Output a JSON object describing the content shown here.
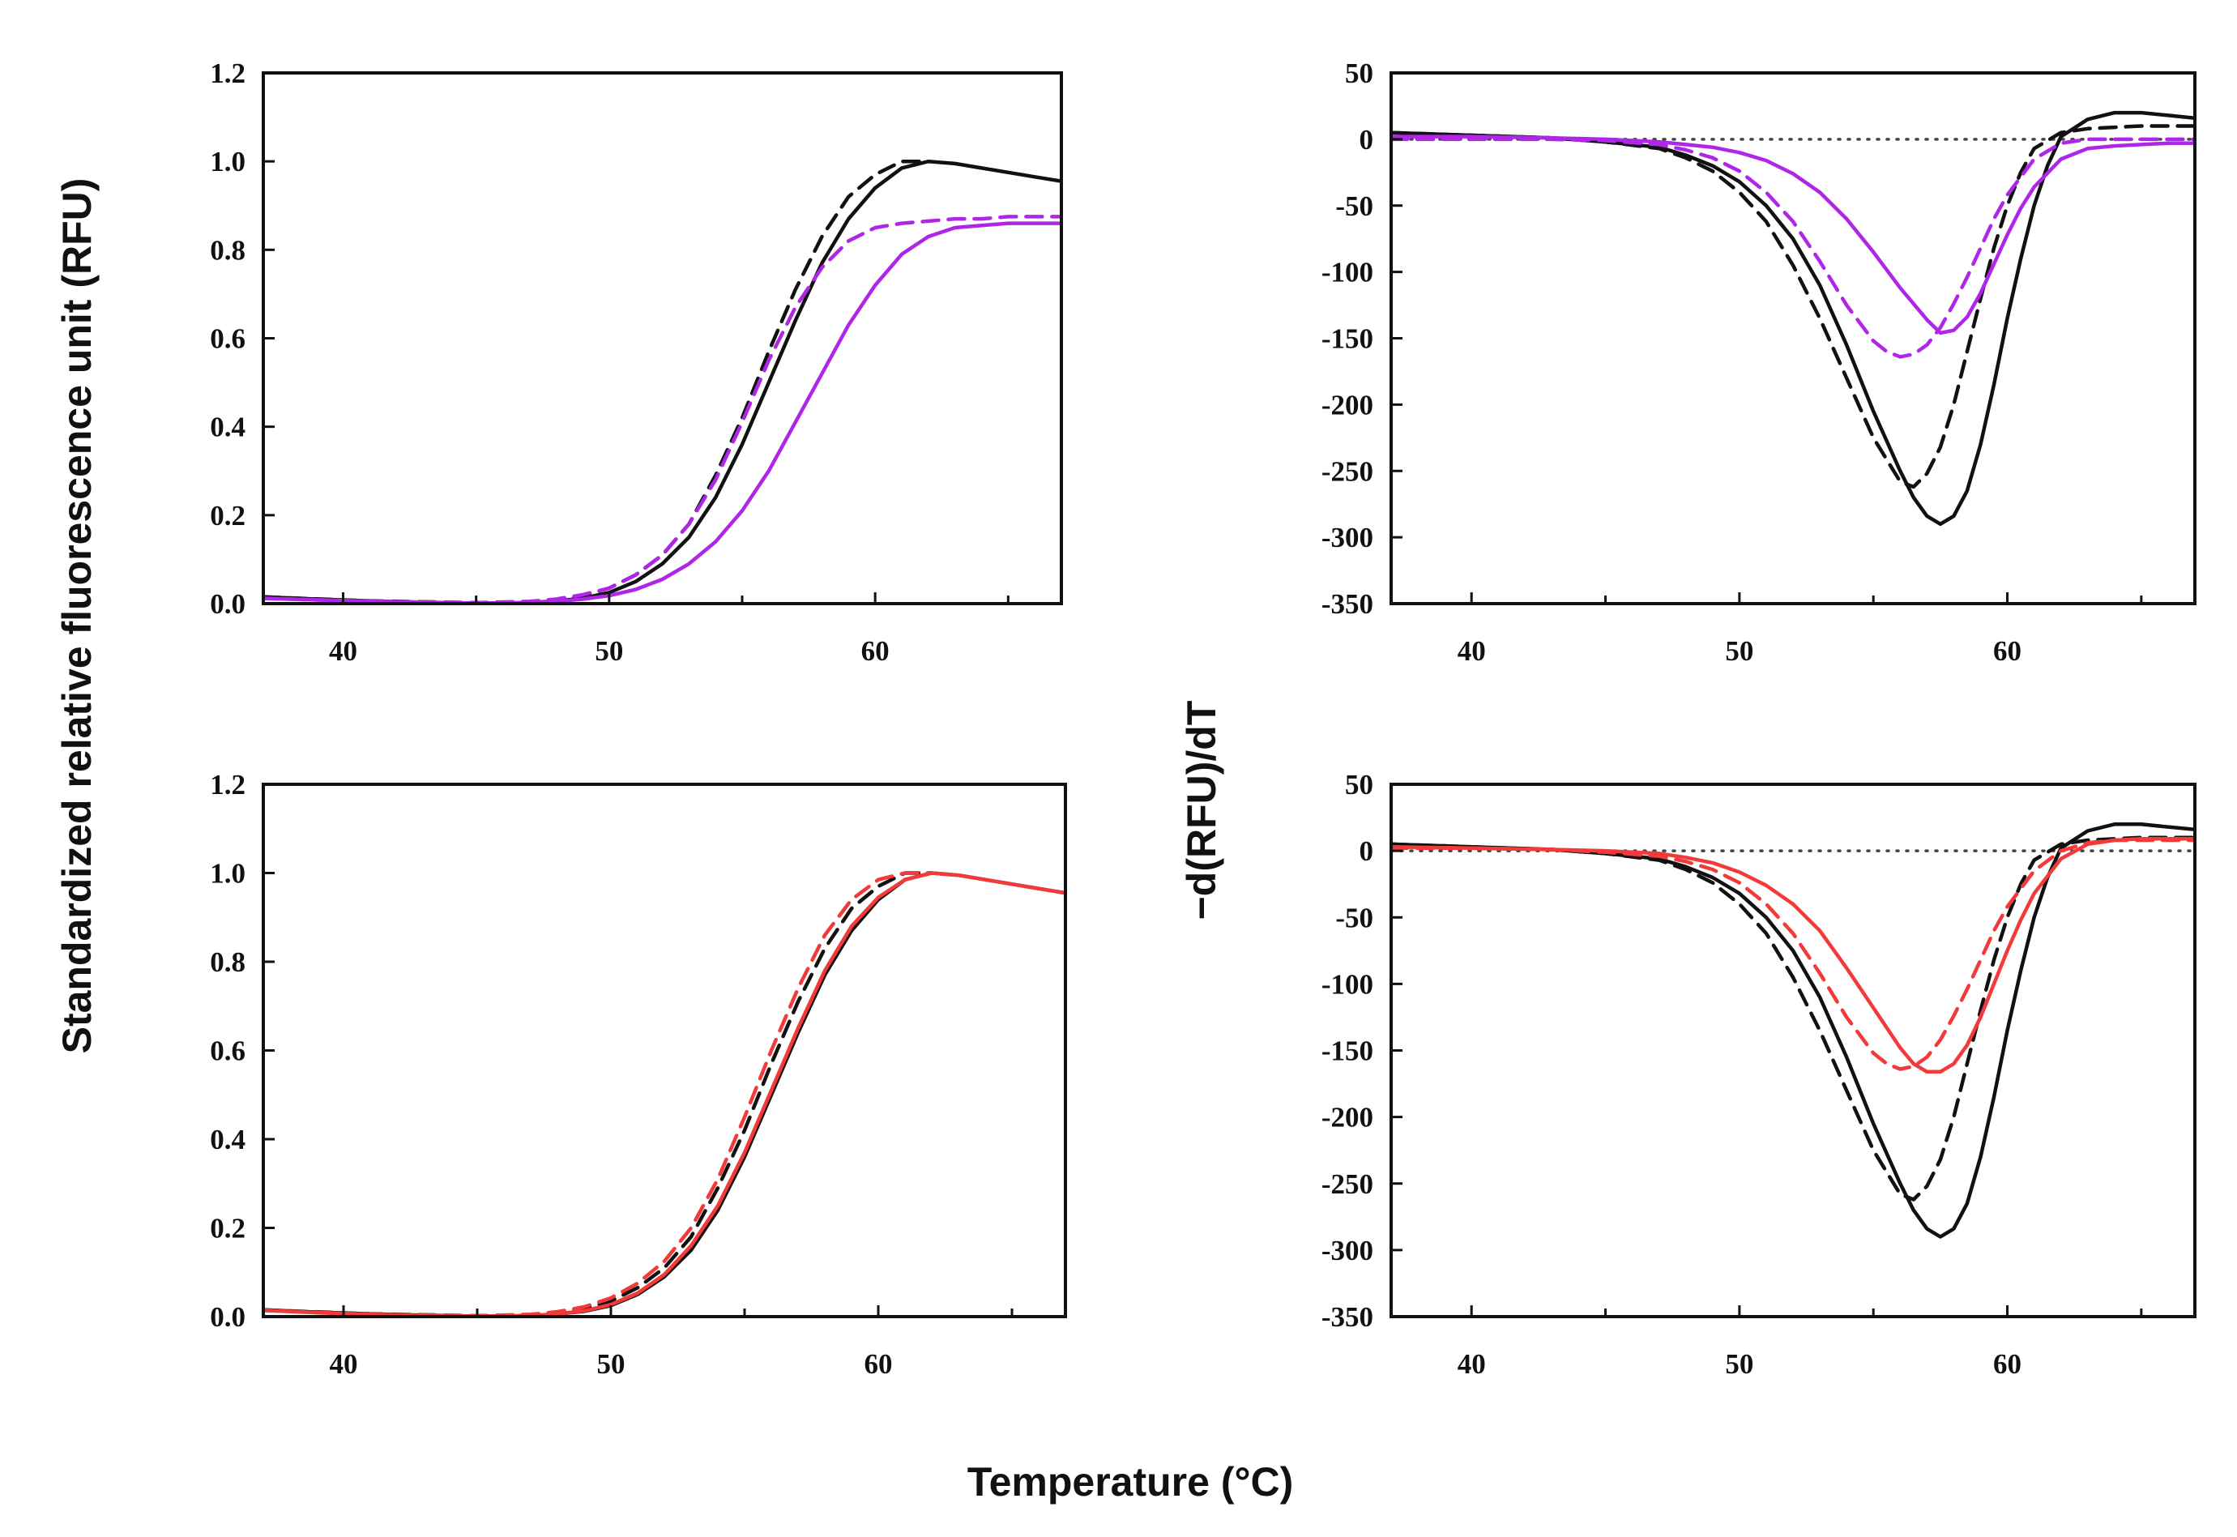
{
  "figure": {
    "y_label_left": "Standardized relative fluorescence unit (RFU)",
    "y_label_right": "−d(RFU)/dT",
    "x_label": "Temperature (°C)"
  },
  "colors": {
    "black": "#111111",
    "purple": "#b026e8",
    "red": "#f23a3a",
    "baseline": "#444444"
  },
  "chart_data": [
    {
      "id": "top_left",
      "type": "line",
      "xlim": [
        37,
        67
      ],
      "ylim": [
        0.0,
        1.2
      ],
      "xticks": [
        40,
        50,
        60
      ],
      "yticks": [
        0.0,
        0.2,
        0.4,
        0.6,
        0.8,
        1.0,
        1.2
      ],
      "ytick_labels": [
        "0.0",
        "0.2",
        "0.4",
        "0.6",
        "0.8",
        "1.0",
        "1.2"
      ],
      "xlabel": "Temperature (°C)",
      "ylabel": "Standardized relative fluorescence unit (RFU)",
      "series": [
        {
          "name": "black-solid",
          "color": "black",
          "dash": false,
          "x": [
            37,
            39,
            41,
            43,
            45,
            47,
            48,
            49,
            50,
            51,
            52,
            53,
            54,
            55,
            56,
            57,
            58,
            59,
            60,
            61,
            62,
            63,
            64,
            65,
            66,
            67
          ],
          "y": [
            0.015,
            0.01,
            0.006,
            0.003,
            0.001,
            0.002,
            0.006,
            0.012,
            0.025,
            0.05,
            0.09,
            0.15,
            0.24,
            0.36,
            0.5,
            0.64,
            0.77,
            0.87,
            0.94,
            0.985,
            1.0,
            0.995,
            0.985,
            0.975,
            0.965,
            0.955
          ]
        },
        {
          "name": "black-dashed",
          "color": "black",
          "dash": true,
          "x": [
            37,
            41,
            45,
            47,
            48,
            49,
            50,
            51,
            52,
            53,
            54,
            55,
            56,
            57,
            58,
            59,
            60,
            61,
            62
          ],
          "y": [
            0.015,
            0.006,
            0.002,
            0.004,
            0.009,
            0.018,
            0.035,
            0.065,
            0.11,
            0.18,
            0.29,
            0.42,
            0.57,
            0.71,
            0.83,
            0.92,
            0.97,
            1.0,
            1.0
          ]
        },
        {
          "name": "purple-solid",
          "color": "purple",
          "dash": false,
          "x": [
            37,
            41,
            45,
            47,
            48,
            49,
            50,
            51,
            52,
            53,
            54,
            55,
            56,
            57,
            58,
            59,
            60,
            61,
            62,
            63,
            64,
            65,
            66,
            67
          ],
          "y": [
            0.012,
            0.005,
            0.001,
            0.002,
            0.005,
            0.01,
            0.018,
            0.032,
            0.055,
            0.09,
            0.14,
            0.21,
            0.3,
            0.41,
            0.52,
            0.63,
            0.72,
            0.79,
            0.83,
            0.85,
            0.855,
            0.86,
            0.86,
            0.86
          ]
        },
        {
          "name": "purple-dashed",
          "color": "purple",
          "dash": true,
          "x": [
            37,
            41,
            45,
            47,
            48,
            49,
            50,
            51,
            52,
            53,
            54,
            55,
            56,
            57,
            58,
            59,
            60,
            61,
            62,
            63,
            64,
            65,
            66,
            67
          ],
          "y": [
            0.012,
            0.005,
            0.002,
            0.005,
            0.01,
            0.02,
            0.035,
            0.065,
            0.11,
            0.18,
            0.28,
            0.41,
            0.55,
            0.67,
            0.76,
            0.82,
            0.85,
            0.86,
            0.865,
            0.87,
            0.87,
            0.875,
            0.875,
            0.875
          ]
        }
      ]
    },
    {
      "id": "top_right",
      "type": "line",
      "xlim": [
        37,
        67
      ],
      "ylim": [
        -350,
        50
      ],
      "xticks": [
        40,
        50,
        60
      ],
      "yticks": [
        -350,
        -300,
        -250,
        -200,
        -150,
        -100,
        -50,
        0,
        50
      ],
      "ytick_labels": [
        "-350",
        "-300",
        "-250",
        "-200",
        "-150",
        "-100",
        "-50",
        "0",
        "50"
      ],
      "baseline": 0,
      "xlabel": "Temperature (°C)",
      "ylabel": "−d(RFU)/dT",
      "series": [
        {
          "name": "black-solid",
          "color": "black",
          "dash": false,
          "x": [
            37,
            40,
            43,
            45,
            47,
            48,
            49,
            50,
            51,
            52,
            53,
            54,
            55,
            56,
            56.5,
            57,
            57.5,
            58,
            58.5,
            59,
            59.5,
            60,
            60.5,
            61,
            61.5,
            62,
            63,
            64,
            65,
            66,
            67
          ],
          "y": [
            5,
            3,
            1,
            -2,
            -6,
            -12,
            -20,
            -32,
            -50,
            -75,
            -110,
            -155,
            -205,
            -250,
            -270,
            -284,
            -290,
            -284,
            -265,
            -230,
            -185,
            -135,
            -90,
            -50,
            -20,
            2,
            15,
            20,
            20,
            18,
            16
          ]
        },
        {
          "name": "black-dashed",
          "color": "black",
          "dash": true,
          "x": [
            37,
            40,
            43,
            45,
            47,
            48,
            49,
            50,
            51,
            52,
            53,
            54,
            55,
            56,
            56.5,
            57,
            57.5,
            58,
            58.5,
            59,
            59.5,
            60,
            60.5,
            61,
            62,
            63,
            64,
            65,
            66,
            67
          ],
          "y": [
            5,
            3,
            1,
            -2,
            -7,
            -14,
            -24,
            -40,
            -62,
            -95,
            -135,
            -180,
            -225,
            -258,
            -262,
            -252,
            -232,
            -200,
            -160,
            -120,
            -82,
            -50,
            -25,
            -7,
            5,
            8,
            9,
            10,
            10,
            10
          ]
        },
        {
          "name": "purple-solid",
          "color": "purple",
          "dash": false,
          "x": [
            37,
            40,
            43,
            45,
            47,
            48,
            49,
            50,
            51,
            52,
            53,
            54,
            55,
            56,
            57,
            57.5,
            58,
            58.5,
            59,
            59.5,
            60,
            60.5,
            61,
            62,
            63,
            64,
            65,
            66,
            67
          ],
          "y": [
            2,
            2,
            1,
            0,
            -2,
            -4,
            -6,
            -10,
            -16,
            -26,
            -40,
            -60,
            -85,
            -112,
            -136,
            -146,
            -144,
            -134,
            -116,
            -94,
            -72,
            -52,
            -36,
            -15,
            -7,
            -5,
            -4,
            -3,
            -3
          ]
        },
        {
          "name": "purple-dashed",
          "color": "purple",
          "dash": true,
          "x": [
            37,
            40,
            43,
            45,
            47,
            48,
            49,
            50,
            51,
            52,
            53,
            54,
            55,
            55.5,
            56,
            56.5,
            57,
            57.5,
            58,
            58.5,
            59,
            59.5,
            60,
            61,
            62,
            63,
            64,
            65,
            66,
            67
          ],
          "y": [
            0,
            0,
            0,
            -1,
            -4,
            -8,
            -14,
            -24,
            -40,
            -62,
            -92,
            -125,
            -152,
            -160,
            -164,
            -162,
            -155,
            -142,
            -124,
            -104,
            -82,
            -60,
            -42,
            -15,
            -3,
            0,
            0,
            0,
            0,
            0
          ]
        }
      ]
    },
    {
      "id": "bottom_left",
      "type": "line",
      "xlim": [
        37,
        67
      ],
      "ylim": [
        0.0,
        1.2
      ],
      "xticks": [
        40,
        50,
        60
      ],
      "yticks": [
        0.0,
        0.2,
        0.4,
        0.6,
        0.8,
        1.0,
        1.2
      ],
      "ytick_labels": [
        "0.0",
        "0.2",
        "0.4",
        "0.6",
        "0.8",
        "1.0",
        "1.2"
      ],
      "xlabel": "Temperature (°C)",
      "ylabel": "Standardized relative fluorescence unit (RFU)",
      "series": [
        {
          "name": "black-solid",
          "color": "black",
          "dash": false,
          "x": [
            37,
            39,
            41,
            43,
            45,
            47,
            48,
            49,
            50,
            51,
            52,
            53,
            54,
            55,
            56,
            57,
            58,
            59,
            60,
            61,
            62,
            63,
            64,
            65,
            66,
            67
          ],
          "y": [
            0.015,
            0.01,
            0.006,
            0.003,
            0.001,
            0.002,
            0.006,
            0.012,
            0.025,
            0.05,
            0.09,
            0.15,
            0.24,
            0.36,
            0.5,
            0.64,
            0.77,
            0.87,
            0.94,
            0.985,
            1.0,
            0.995,
            0.985,
            0.975,
            0.965,
            0.955
          ]
        },
        {
          "name": "black-dashed",
          "color": "black",
          "dash": true,
          "x": [
            37,
            41,
            45,
            47,
            48,
            49,
            50,
            51,
            52,
            53,
            54,
            55,
            56,
            57,
            58,
            59,
            60,
            61,
            62
          ],
          "y": [
            0.015,
            0.006,
            0.002,
            0.004,
            0.009,
            0.018,
            0.035,
            0.065,
            0.11,
            0.18,
            0.29,
            0.42,
            0.57,
            0.71,
            0.83,
            0.92,
            0.97,
            1.0,
            1.0
          ]
        },
        {
          "name": "red-solid",
          "color": "red",
          "dash": false,
          "x": [
            37,
            39,
            41,
            43,
            45,
            47,
            48,
            49,
            50,
            51,
            52,
            53,
            54,
            55,
            56,
            57,
            58,
            59,
            60,
            61,
            62,
            63,
            64,
            65,
            66,
            67
          ],
          "y": [
            0.014,
            0.009,
            0.005,
            0.002,
            0.001,
            0.002,
            0.006,
            0.013,
            0.027,
            0.053,
            0.095,
            0.16,
            0.25,
            0.37,
            0.51,
            0.65,
            0.78,
            0.88,
            0.945,
            0.985,
            1.0,
            0.995,
            0.985,
            0.975,
            0.965,
            0.955
          ]
        },
        {
          "name": "red-dashed",
          "color": "red",
          "dash": true,
          "x": [
            37,
            41,
            45,
            47,
            48,
            49,
            50,
            51,
            52,
            53,
            54,
            55,
            56,
            57,
            58,
            59,
            60,
            61,
            62
          ],
          "y": [
            0.014,
            0.005,
            0.002,
            0.005,
            0.011,
            0.022,
            0.042,
            0.075,
            0.125,
            0.2,
            0.31,
            0.45,
            0.6,
            0.74,
            0.86,
            0.94,
            0.985,
            1.0,
            1.0
          ]
        }
      ]
    },
    {
      "id": "bottom_right",
      "type": "line",
      "xlim": [
        37,
        67
      ],
      "ylim": [
        -350,
        50
      ],
      "xticks": [
        40,
        50,
        60
      ],
      "yticks": [
        -350,
        -300,
        -250,
        -200,
        -150,
        -100,
        -50,
        0,
        50
      ],
      "ytick_labels": [
        "-350",
        "-300",
        "-250",
        "-200",
        "-150",
        "-100",
        "-50",
        "0",
        "50"
      ],
      "baseline": 0,
      "xlabel": "Temperature (°C)",
      "ylabel": "−d(RFU)/dT",
      "series": [
        {
          "name": "black-solid",
          "color": "black",
          "dash": false,
          "x": [
            37,
            40,
            43,
            45,
            47,
            48,
            49,
            50,
            51,
            52,
            53,
            54,
            55,
            56,
            56.5,
            57,
            57.5,
            58,
            58.5,
            59,
            59.5,
            60,
            60.5,
            61,
            61.5,
            62,
            63,
            64,
            65,
            66,
            67
          ],
          "y": [
            5,
            3,
            1,
            -2,
            -6,
            -12,
            -20,
            -32,
            -50,
            -75,
            -110,
            -155,
            -205,
            -250,
            -270,
            -284,
            -290,
            -284,
            -265,
            -230,
            -185,
            -135,
            -90,
            -50,
            -20,
            2,
            15,
            20,
            20,
            18,
            16
          ]
        },
        {
          "name": "black-dashed",
          "color": "black",
          "dash": true,
          "x": [
            37,
            40,
            43,
            45,
            47,
            48,
            49,
            50,
            51,
            52,
            53,
            54,
            55,
            56,
            56.5,
            57,
            57.5,
            58,
            58.5,
            59,
            59.5,
            60,
            60.5,
            61,
            62,
            63,
            64,
            65,
            66,
            67
          ],
          "y": [
            5,
            3,
            1,
            -2,
            -7,
            -14,
            -24,
            -40,
            -62,
            -95,
            -135,
            -180,
            -225,
            -258,
            -262,
            -252,
            -232,
            -200,
            -160,
            -120,
            -82,
            -50,
            -25,
            -7,
            5,
            8,
            9,
            10,
            10,
            10
          ]
        },
        {
          "name": "red-solid",
          "color": "red",
          "dash": false,
          "x": [
            37,
            40,
            43,
            45,
            47,
            48,
            49,
            50,
            51,
            52,
            53,
            54,
            55,
            56,
            56.5,
            57,
            57.5,
            58,
            58.5,
            59,
            59.5,
            60,
            60.5,
            61,
            62,
            63,
            64,
            65,
            66,
            67
          ],
          "y": [
            3,
            2,
            1,
            0,
            -2,
            -5,
            -9,
            -16,
            -26,
            -40,
            -60,
            -88,
            -118,
            -148,
            -160,
            -166,
            -166,
            -160,
            -146,
            -125,
            -100,
            -75,
            -52,
            -32,
            -6,
            5,
            8,
            9,
            9,
            9
          ]
        },
        {
          "name": "red-dashed",
          "color": "red",
          "dash": true,
          "x": [
            37,
            40,
            43,
            45,
            47,
            48,
            49,
            50,
            51,
            52,
            53,
            54,
            55,
            55.5,
            56,
            56.5,
            57,
            57.5,
            58,
            58.5,
            59,
            59.5,
            60,
            61,
            62,
            63,
            64,
            65,
            66,
            67
          ],
          "y": [
            2,
            2,
            1,
            -1,
            -4,
            -8,
            -14,
            -24,
            -40,
            -62,
            -92,
            -125,
            -152,
            -160,
            -164,
            -162,
            -155,
            -142,
            -124,
            -104,
            -82,
            -60,
            -42,
            -15,
            0,
            6,
            8,
            8,
            8,
            8
          ]
        }
      ]
    }
  ]
}
